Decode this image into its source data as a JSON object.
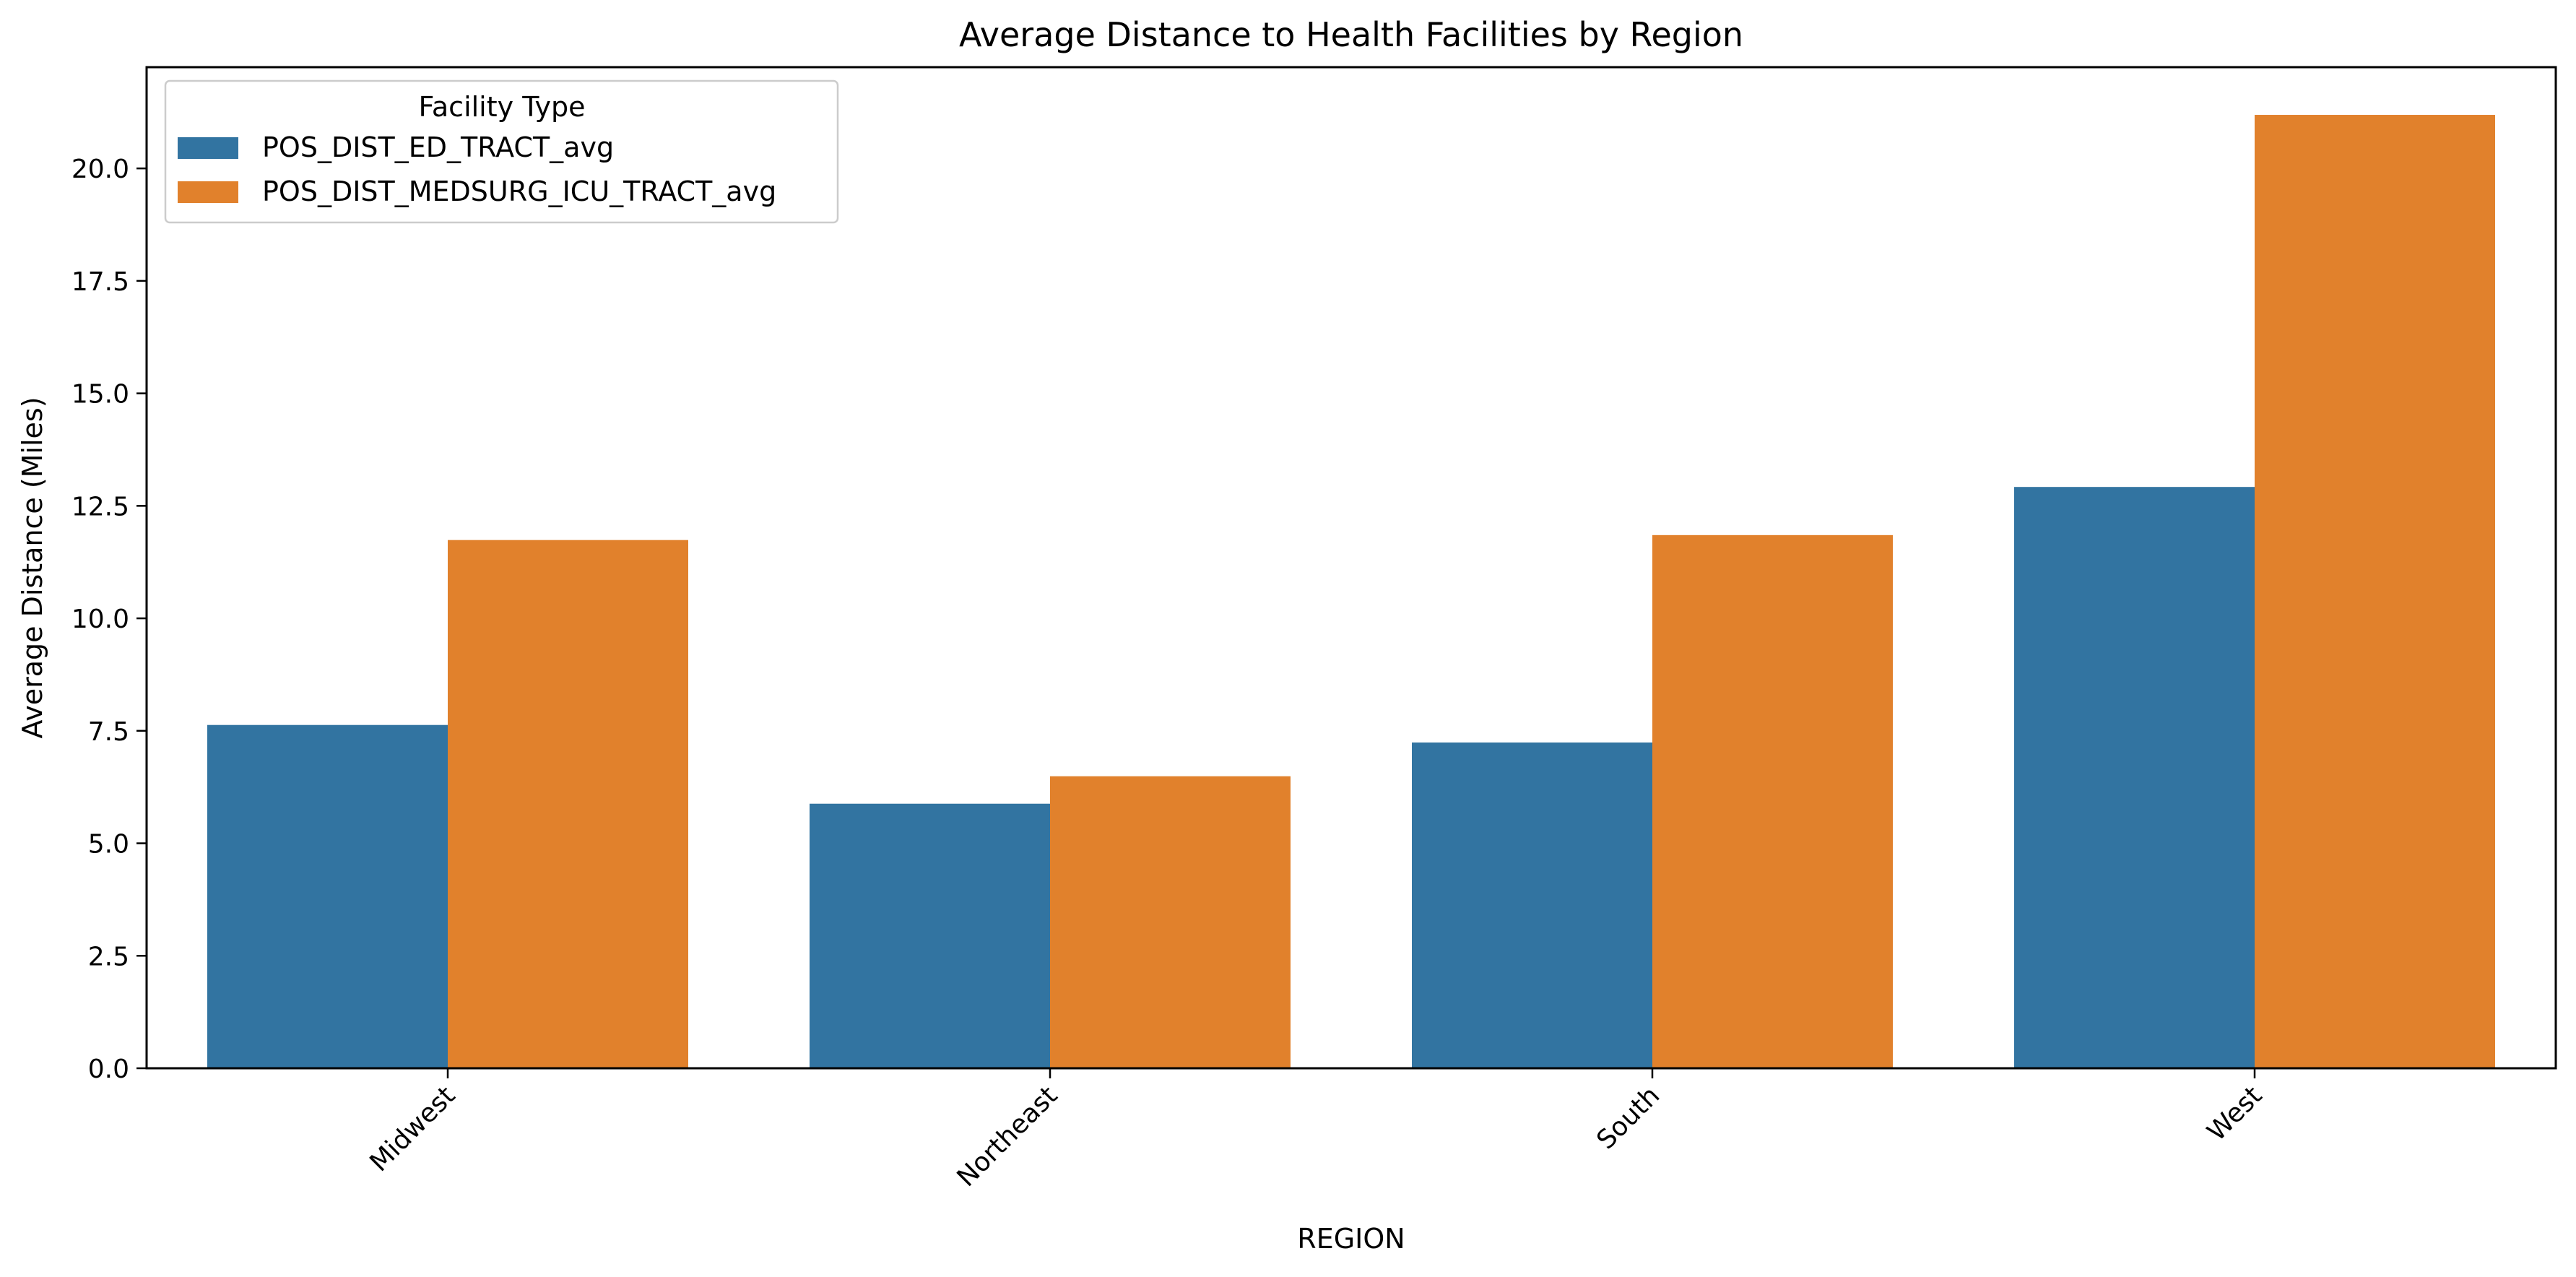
{
  "chart_data": {
    "type": "bar",
    "title": "Average Distance to Health Facilities by Region",
    "xlabel": "REGION",
    "ylabel": "Average Distance (Miles)",
    "categories": [
      "Midwest",
      "Northeast",
      "South",
      "West"
    ],
    "series": [
      {
        "name": "POS_DIST_ED_TRACT_avg",
        "color": "#3274a1",
        "values": [
          7.63,
          5.88,
          7.24,
          12.92
        ]
      },
      {
        "name": "POS_DIST_MEDSURG_ICU_TRACT_avg",
        "color": "#e1812c",
        "values": [
          11.74,
          6.49,
          11.85,
          21.19
        ]
      }
    ],
    "ylim": [
      0,
      22.25
    ],
    "yticks": [
      "0.0",
      "2.5",
      "5.0",
      "7.5",
      "10.0",
      "12.5",
      "15.0",
      "17.5",
      "20.0"
    ],
    "legend": {
      "title": "Facility Type",
      "placement": "top-left"
    },
    "grid": false
  }
}
